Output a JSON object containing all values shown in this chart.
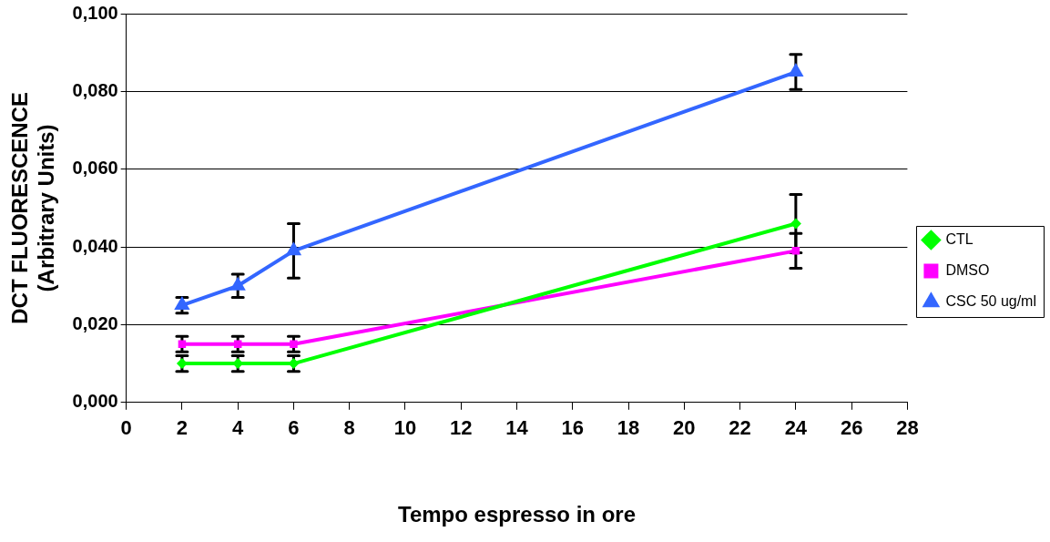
{
  "chart_data": {
    "type": "line",
    "xlabel": "Tempo espresso in ore",
    "ylabel": "DCT FLUORESCENCE\n(Arbitrary Units)",
    "x": [
      2,
      4,
      6,
      24
    ],
    "series": [
      {
        "name": "CTL",
        "color": "#00ff00",
        "marker": "diamond",
        "values": [
          0.01,
          0.01,
          0.01,
          0.046
        ],
        "errors": [
          0.002,
          0.002,
          0.002,
          0.0075
        ]
      },
      {
        "name": "DMSO",
        "color": "#ff00ff",
        "marker": "square",
        "values": [
          0.015,
          0.015,
          0.015,
          0.039
        ],
        "errors": [
          0.002,
          0.002,
          0.002,
          0.0045
        ]
      },
      {
        "name": "CSC 50 ug/ml",
        "color": "#3366ff",
        "marker": "triangle",
        "values": [
          0.025,
          0.03,
          0.039,
          0.085
        ],
        "errors": [
          0.002,
          0.003,
          0.007,
          0.0045
        ]
      }
    ],
    "xlim": [
      0,
      28
    ],
    "xticks": [
      0,
      2,
      4,
      6,
      8,
      10,
      12,
      14,
      16,
      18,
      20,
      22,
      24,
      26,
      28
    ],
    "ylim": [
      0,
      0.1
    ],
    "yticks": [
      {
        "value": 0,
        "label": "0,000"
      },
      {
        "value": 0.02,
        "label": "0,020"
      },
      {
        "value": 0.04,
        "label": "0,040"
      },
      {
        "value": 0.06,
        "label": "0,060"
      },
      {
        "value": 0.08,
        "label": "0,080"
      },
      {
        "value": 0.1,
        "label": "0,100"
      }
    ],
    "grid": "y",
    "legend": "right"
  }
}
